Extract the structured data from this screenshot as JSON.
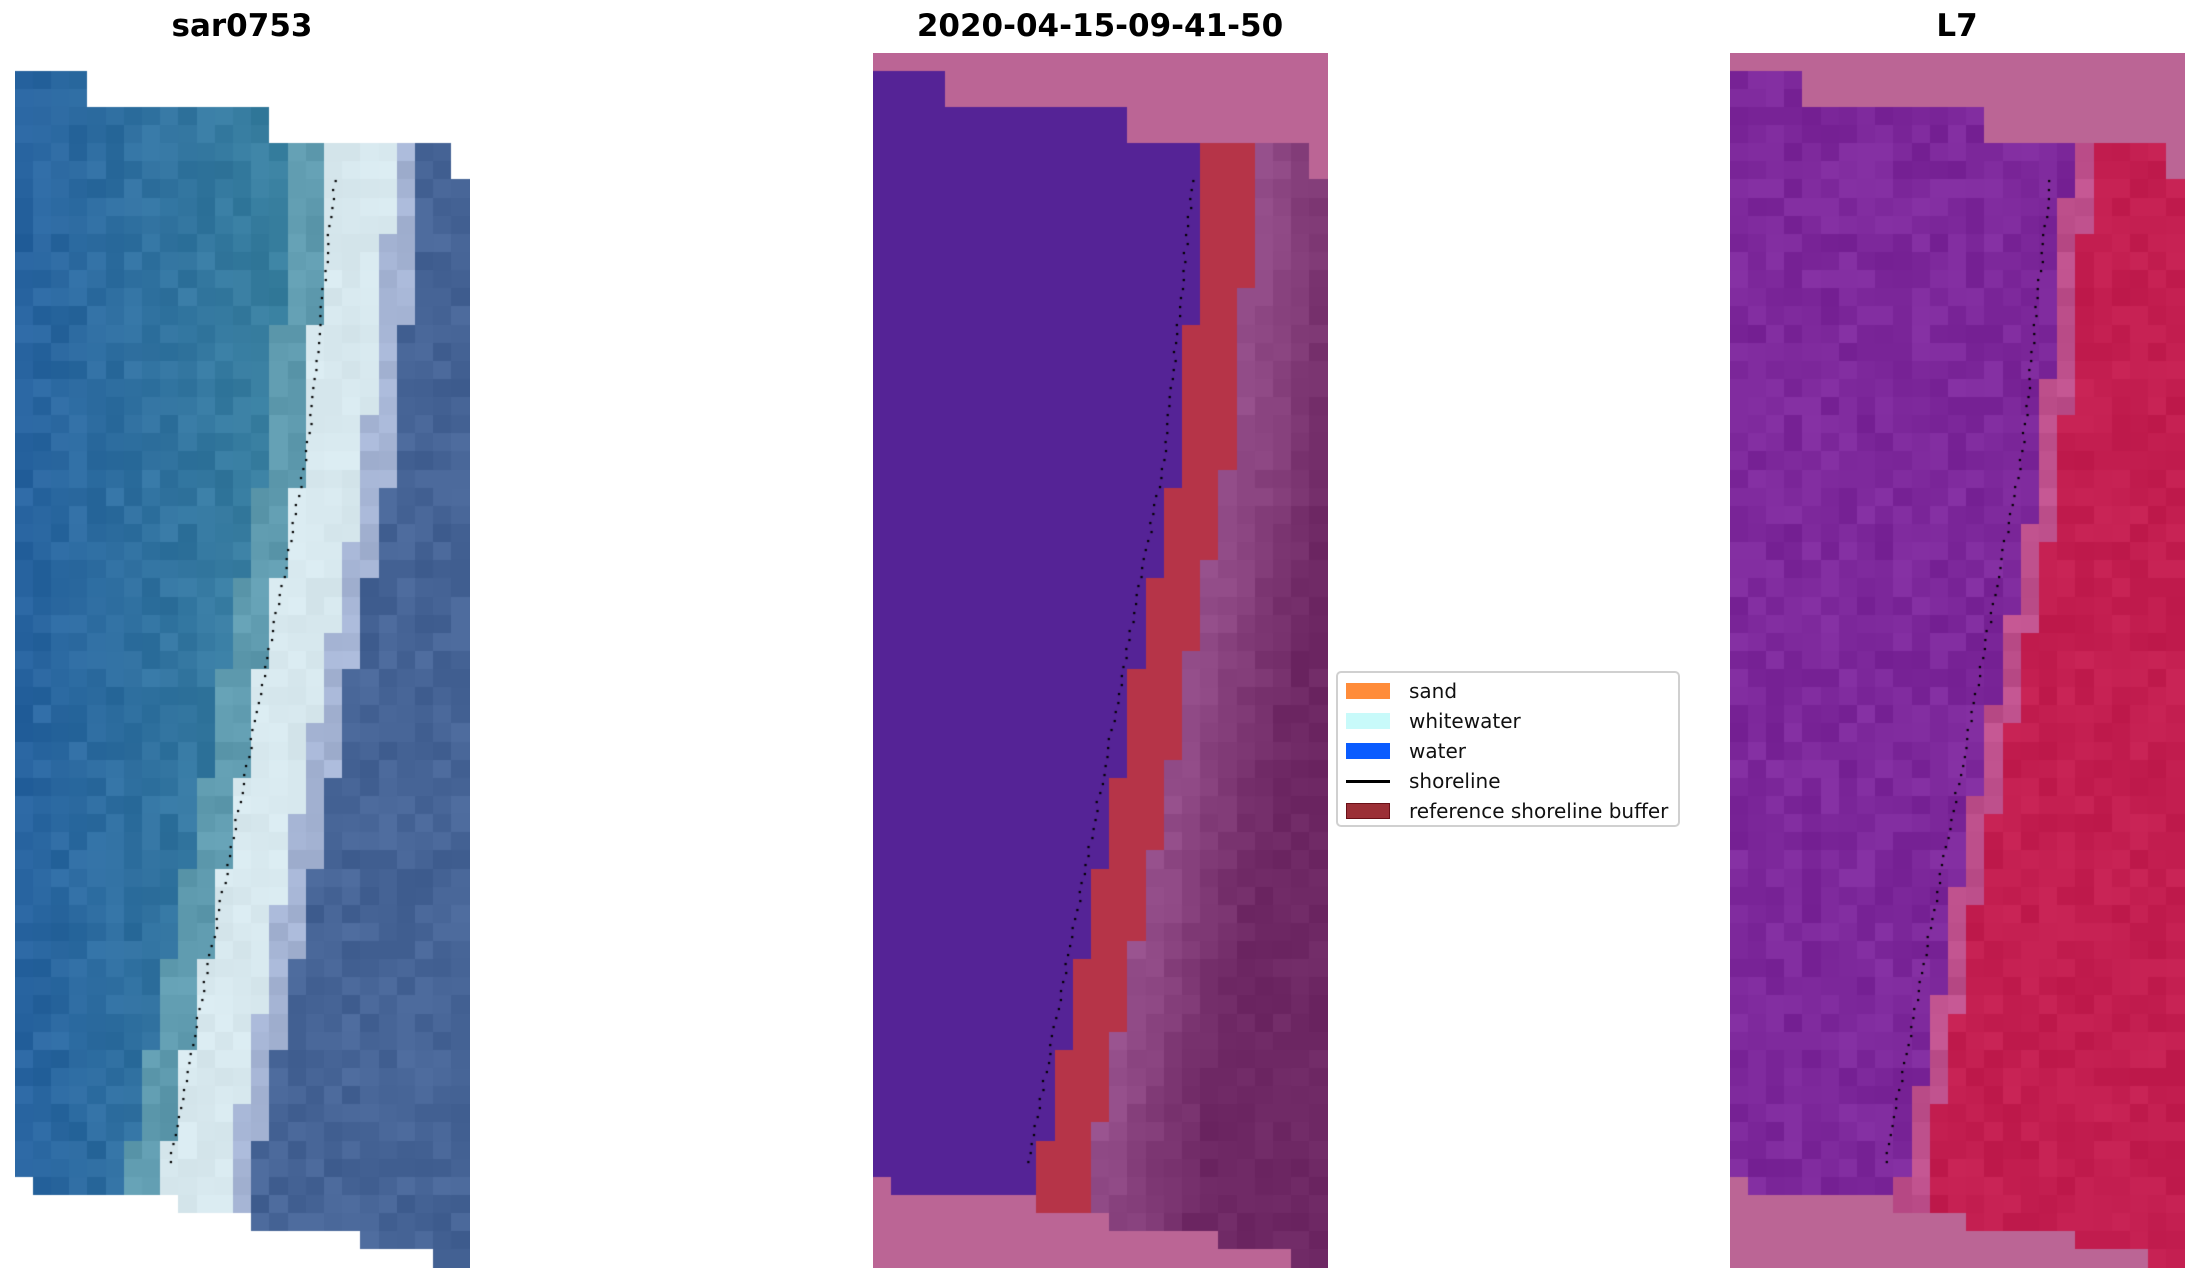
{
  "panels": [
    {
      "title": "sar0753",
      "kind": "rgb"
    },
    {
      "title": "2020-04-15-09-41-50",
      "kind": "classified"
    },
    {
      "title": "L7",
      "kind": "index"
    }
  ],
  "legend": {
    "items": [
      {
        "label": "sand",
        "color": "#ff8c3a"
      },
      {
        "label": "whitewater",
        "color": "#c8fafa"
      },
      {
        "label": "water",
        "color": "#0a5cff"
      },
      {
        "label": "shoreline",
        "color": "#000000"
      },
      {
        "label": "reference shoreline buffer",
        "color": "#9b2f36"
      }
    ]
  },
  "colors": {
    "nodata_mask": "#bb6595"
  }
}
